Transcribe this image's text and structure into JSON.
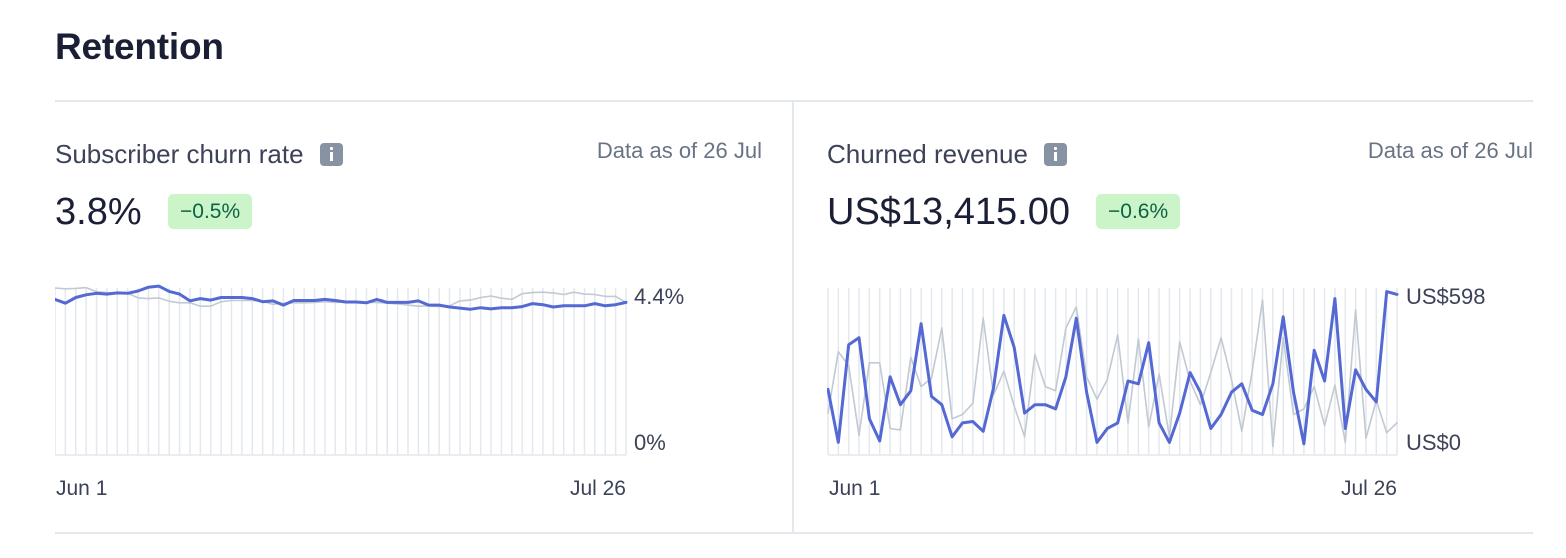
{
  "section": {
    "title": "Retention"
  },
  "cards": [
    {
      "title": "Subscriber churn rate",
      "as_of": "Data as of 26 Jul",
      "value": "3.8%",
      "delta": "−0.5%"
    },
    {
      "title": "Churned revenue",
      "as_of": "Data as of 26 Jul",
      "value": "US$13,415.00",
      "delta": "−0.6%"
    }
  ],
  "colors": {
    "current": "#5469d4",
    "previous": "#c1c9d2",
    "gridline": "#e3e8ee",
    "badge_bg": "#cbf4c9",
    "badge_text": "#0e6245"
  },
  "chart_data": [
    {
      "type": "line",
      "x_start": "Jun 1",
      "x_end": "Jul 26",
      "ylim": [
        0,
        4.4
      ],
      "y_tick_labels": [
        "4.4%",
        "0%"
      ],
      "x_tick_labels": [
        "Jun 1",
        "Jul 26"
      ],
      "grid": true,
      "series": [
        {
          "role": "current",
          "values": [
            4.1,
            4.0,
            4.15,
            4.22,
            4.26,
            4.24,
            4.27,
            4.26,
            4.32,
            4.42,
            4.45,
            4.31,
            4.24,
            4.06,
            4.12,
            4.08,
            4.15,
            4.15,
            4.15,
            4.12,
            4.04,
            4.06,
            3.95,
            4.07,
            4.07,
            4.07,
            4.1,
            4.07,
            4.03,
            4.03,
            4.01,
            4.1,
            4.02,
            4.02,
            4.02,
            4.06,
            3.95,
            3.95,
            3.9,
            3.87,
            3.84,
            3.88,
            3.85,
            3.88,
            3.88,
            3.91,
            3.99,
            3.96,
            3.9,
            3.93,
            3.93,
            3.93,
            3.99,
            3.93,
            3.96,
            4.02
          ]
        },
        {
          "role": "previous",
          "values": [
            4.4,
            4.38,
            4.39,
            4.41,
            4.3,
            4.28,
            4.27,
            4.26,
            4.14,
            4.12,
            4.14,
            4.05,
            4.01,
            4.01,
            3.92,
            3.92,
            4.04,
            4.07,
            4.07,
            4.07,
            4.05,
            3.97,
            4.0,
            4.01,
            4.01,
            4.02,
            4.04,
            4.02,
            4.04,
            4.04,
            4.02,
            4.02,
            4.0,
            3.98,
            3.95,
            3.92,
            3.93,
            3.91,
            3.93,
            4.06,
            4.08,
            4.15,
            4.19,
            4.13,
            4.1,
            4.25,
            4.28,
            4.29,
            4.27,
            4.23,
            4.29,
            4.24,
            4.23,
            4.18,
            4.18,
            4.02
          ]
        }
      ]
    },
    {
      "type": "line",
      "x_start": "Jun 1",
      "x_end": "Jul 26",
      "ylim": [
        0,
        598
      ],
      "y_tick_labels": [
        "US$598",
        "US$0"
      ],
      "x_tick_labels": [
        "Jun 1",
        "Jul 26"
      ],
      "grid": true,
      "series": [
        {
          "role": "current",
          "values": [
            235,
            45,
            395,
            420,
            130,
            50,
            280,
            180,
            230,
            470,
            210,
            180,
            65,
            115,
            120,
            85,
            240,
            500,
            385,
            150,
            180,
            180,
            165,
            280,
            490,
            225,
            45,
            95,
            115,
            265,
            255,
            402,
            115,
            45,
            150,
            295,
            225,
            95,
            145,
            225,
            255,
            160,
            145,
            255,
            495,
            225,
            40,
            375,
            265,
            560,
            95,
            305,
            235,
            190,
            585,
            575
          ]
        },
        {
          "role": "previous",
          "values": [
            150,
            370,
            320,
            70,
            330,
            330,
            95,
            90,
            350,
            245,
            275,
            455,
            130,
            145,
            185,
            490,
            215,
            300,
            175,
            65,
            360,
            245,
            230,
            455,
            530,
            280,
            200,
            270,
            430,
            115,
            415,
            100,
            290,
            65,
            405,
            265,
            180,
            295,
            420,
            270,
            85,
            300,
            555,
            30,
            420,
            145,
            165,
            245,
            105,
            250,
            45,
            520,
            60,
            195,
            80,
            115
          ]
        }
      ]
    }
  ]
}
